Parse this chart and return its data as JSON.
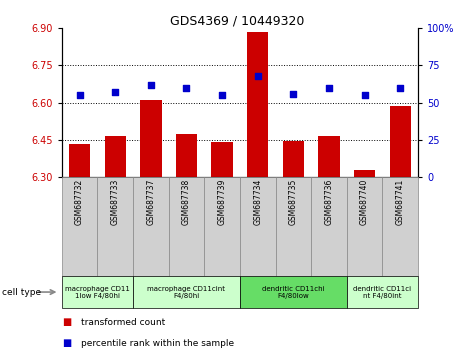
{
  "title": "GDS4369 / 10449320",
  "samples": [
    "GSM687732",
    "GSM687733",
    "GSM687737",
    "GSM687738",
    "GSM687739",
    "GSM687734",
    "GSM687735",
    "GSM687736",
    "GSM687740",
    "GSM687741"
  ],
  "bar_values": [
    6.435,
    6.465,
    6.61,
    6.475,
    6.44,
    6.885,
    6.445,
    6.465,
    6.33,
    6.585
  ],
  "scatter_values": [
    55,
    57,
    62,
    60,
    55,
    68,
    56,
    60,
    55,
    60
  ],
  "ylim_left": [
    6.3,
    6.9
  ],
  "ylim_right": [
    0,
    100
  ],
  "yticks_left": [
    6.3,
    6.45,
    6.6,
    6.75,
    6.9
  ],
  "yticks_right": [
    0,
    25,
    50,
    75,
    100
  ],
  "ytick_labels_right": [
    "0",
    "25",
    "50",
    "75",
    "100%"
  ],
  "bar_color": "#cc0000",
  "scatter_color": "#0000cc",
  "bar_bottom": 6.3,
  "cell_type_groups": [
    {
      "label": "macrophage CD11\n1low F4/80hi",
      "start": 0,
      "end": 2,
      "color": "#ccffcc"
    },
    {
      "label": "macrophage CD11cint\nF4/80hi",
      "start": 2,
      "end": 5,
      "color": "#ccffcc"
    },
    {
      "label": "dendritic CD11chi\nF4/80low",
      "start": 5,
      "end": 8,
      "color": "#66dd66"
    },
    {
      "label": "dendritic CD11ci\nnt F4/80int",
      "start": 8,
      "end": 10,
      "color": "#ccffcc"
    }
  ],
  "legend_items": [
    {
      "label": "transformed count",
      "color": "#cc0000"
    },
    {
      "label": "percentile rank within the sample",
      "color": "#0000cc"
    }
  ],
  "grid_yticks": [
    6.45,
    6.6,
    6.75
  ],
  "sample_box_color": "#d0d0d0",
  "sample_box_edge": "#888888"
}
